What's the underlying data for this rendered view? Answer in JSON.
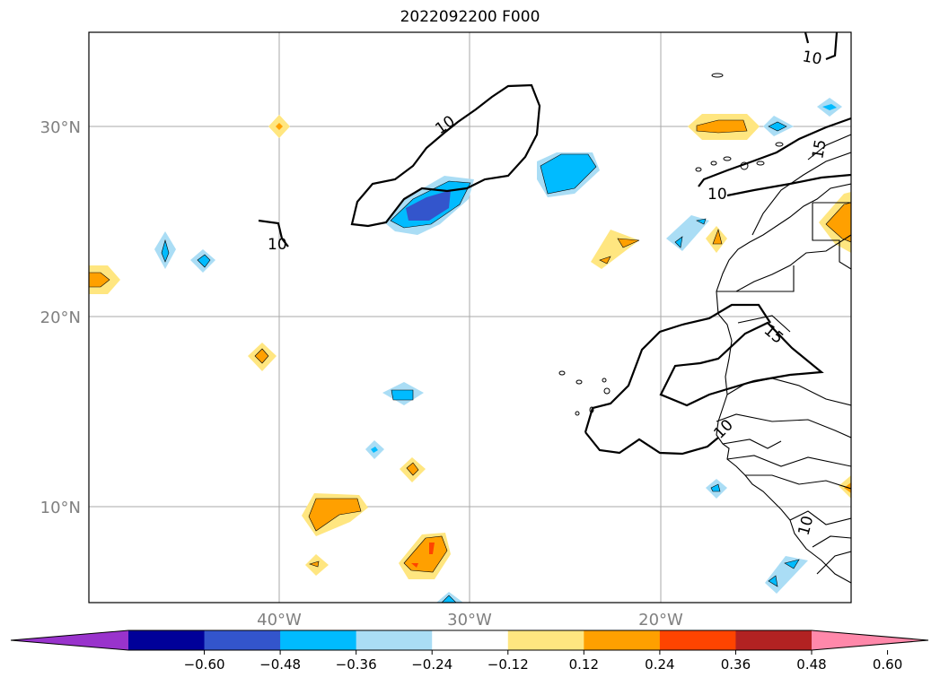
{
  "title": "2022092200 F000",
  "map": {
    "lat_labels": [
      "30°N",
      "20°N",
      "10°N"
    ],
    "lon_labels": [
      "40°W",
      "30°W",
      "20°W"
    ],
    "contour_labels": [
      "10",
      "10",
      "10",
      "15",
      "10",
      "15",
      "10",
      "10"
    ],
    "gridline_color": "#aaaaaa",
    "label_color": "#808080"
  },
  "colorbar": {
    "ticks": [
      "−0.60",
      "−0.48",
      "−0.36",
      "−0.24",
      "−0.12",
      "0.12",
      "0.24",
      "0.36",
      "0.48",
      "0.60"
    ],
    "colors": [
      "#9933cc",
      "#000099",
      "#3355cc",
      "#00bbff",
      "#aaddf5",
      "#ffffff",
      "#ffe680",
      "#ffa000",
      "#ff4400",
      "#b22222",
      "#ff88aa"
    ],
    "extend": "both"
  }
}
